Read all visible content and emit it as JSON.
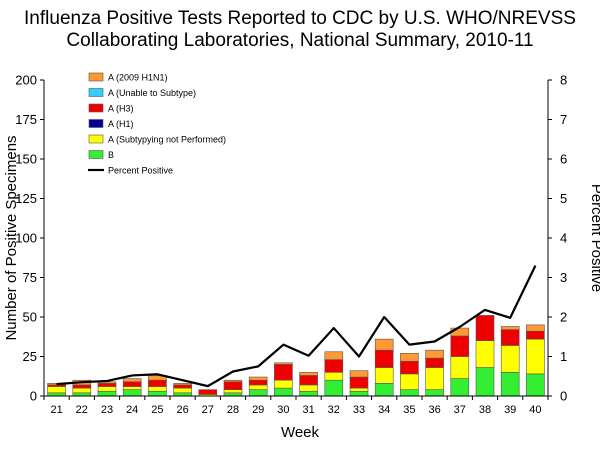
{
  "chart_data": {
    "type": "bar",
    "title_lines": [
      "Influenza Positive Tests Reported to CDC by U.S. WHO/NREVSS",
      "Collaborating Laboratories, National Summary, 2010-11"
    ],
    "xlabel": "Week",
    "ylabel": "Number of Positive Specimens",
    "y2label": "Percent Positive",
    "categories": [
      "21",
      "22",
      "23",
      "24",
      "25",
      "26",
      "27",
      "28",
      "29",
      "30",
      "31",
      "32",
      "33",
      "34",
      "35",
      "36",
      "37",
      "38",
      "39",
      "40"
    ],
    "ylim": [
      0,
      200
    ],
    "yticks": [
      "0",
      "25",
      "50",
      "75",
      "100",
      "125",
      "150",
      "175",
      "200"
    ],
    "y2lim": [
      0,
      8
    ],
    "y2ticks": [
      "0",
      "1",
      "2",
      "3",
      "4",
      "5",
      "6",
      "7",
      "8"
    ],
    "stacked": true,
    "series": [
      {
        "name": "B",
        "color": "#33ee33",
        "values": [
          2,
          2,
          3,
          4,
          3,
          2,
          0,
          2,
          4,
          5,
          3,
          10,
          3,
          8,
          4,
          4,
          11,
          18,
          15,
          14
        ]
      },
      {
        "name": "A (Subtypying not Performed)",
        "color": "#ffff00",
        "values": [
          4,
          3,
          3,
          2,
          3,
          3,
          1,
          2,
          3,
          5,
          4,
          5,
          2,
          10,
          10,
          14,
          14,
          17,
          17,
          22
        ]
      },
      {
        "name": "A (H1)",
        "color": "#000099",
        "values": [
          0,
          0,
          0,
          0,
          0,
          0,
          0,
          0,
          0,
          0,
          0,
          0,
          0,
          0,
          0,
          0,
          0,
          0,
          0,
          0
        ]
      },
      {
        "name": "A (H3)",
        "color": "#ee0000",
        "values": [
          1,
          2,
          2,
          3,
          4,
          2,
          3,
          5,
          3,
          10,
          6,
          8,
          7,
          11,
          8,
          6,
          13,
          16,
          10,
          5
        ]
      },
      {
        "name": "A (Unable to Subtype)",
        "color": "#33ccff",
        "values": [
          0,
          0,
          0,
          0,
          0,
          0,
          0,
          0,
          0,
          0,
          0,
          0,
          0,
          0,
          0,
          0,
          0,
          0,
          0,
          0
        ]
      },
      {
        "name": "A (2009 H1N1)",
        "color": "#ff9933",
        "values": [
          1,
          3,
          1,
          2,
          3,
          1,
          0,
          1,
          2,
          1,
          2,
          5,
          4,
          7,
          5,
          5,
          5,
          0,
          2,
          4
        ]
      }
    ],
    "line_series": {
      "name": "Percent Positive",
      "color": "#000000",
      "axis": "right",
      "values": [
        0.3,
        0.35,
        0.38,
        0.52,
        0.55,
        0.4,
        0.25,
        0.62,
        0.75,
        1.3,
        1.02,
        1.72,
        1.0,
        2.0,
        1.3,
        1.38,
        1.75,
        2.18,
        1.98,
        3.3
      ]
    },
    "legend_order": [
      "A (2009 H1N1)",
      "A (Unable to Subtype)",
      "A (H3)",
      "A (H1)",
      "A (Subtypying not Performed)",
      "B",
      "Percent Positive"
    ],
    "legend_position": "top-left",
    "grid": false
  }
}
